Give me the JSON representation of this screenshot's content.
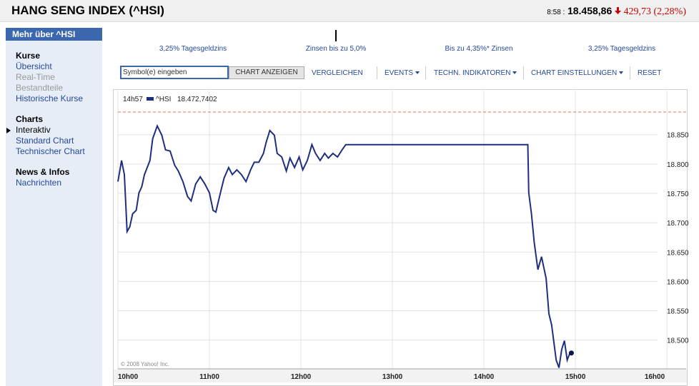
{
  "header": {
    "title": "HANG SENG INDEX (^HSI)",
    "time": "8:58 :",
    "price": "18.458,86",
    "change": "429,73 (2,28%)"
  },
  "sidebar": {
    "heading": "Mehr über ^HSI",
    "sections": [
      {
        "title": "Kurse",
        "links": [
          "Übersicht",
          "Real-Time",
          "Bestandteile",
          "Historische Kurse"
        ]
      },
      {
        "title": "Charts",
        "links": [
          "Interaktiv",
          "Standard Chart",
          "Technischer Chart"
        ]
      },
      {
        "title": "News & Infos",
        "links": [
          "Nachrichten"
        ]
      }
    ]
  },
  "ads": [
    "3,25% Tagesgeldzins",
    "Zinsen bis zu 5,0%",
    "Bis zu 4,35%* Zinsen",
    "3,25% Tagesgeldzins"
  ],
  "toolbar": {
    "input": "Symbol(e) eingeben",
    "button": "CHART ANZEIGEN",
    "items": [
      "VERGLEICHEN",
      "EVENTS",
      "TECHN. INDIKATOREN",
      "CHART EINSTELLUNGEN",
      "RESET"
    ]
  },
  "chart_data": {
    "type": "line",
    "legend_time": "14h57",
    "legend_value": "18.472,7402",
    "copyright": "© 2008 Yahoo! Inc.",
    "ref_line": {
      "value": 18888.59,
      "color": "#e07050"
    },
    "xlim": [
      10,
      16.21
    ],
    "xticks": [
      {
        "value": 10,
        "label": "10h00"
      },
      {
        "value": 11,
        "label": "11h00"
      },
      {
        "value": 12,
        "label": "12h00"
      },
      {
        "value": 13,
        "label": "13h00"
      },
      {
        "value": 14,
        "label": "14h00"
      },
      {
        "value": 15,
        "label": "15h00"
      },
      {
        "value": 16,
        "label": "16h00"
      }
    ],
    "ylim": [
      18451,
      18925
    ],
    "yticks": [
      {
        "value": 18500,
        "label": "18.500"
      },
      {
        "value": 18550,
        "label": "18.550"
      },
      {
        "value": 18600,
        "label": "18.600"
      },
      {
        "value": 18650,
        "label": "18.650"
      },
      {
        "value": 18700,
        "label": "18.700"
      },
      {
        "value": 18750,
        "label": "18.750"
      },
      {
        "value": 18800,
        "label": "18.800"
      },
      {
        "value": 18850,
        "label": "18.850"
      }
    ],
    "grid": true,
    "x": [
      10.0,
      10.04,
      10.07,
      10.1,
      10.13,
      10.16,
      10.2,
      10.23,
      10.26,
      10.29,
      10.32,
      10.35,
      10.38,
      10.43,
      10.48,
      10.52,
      10.57,
      10.62,
      10.66,
      10.71,
      10.76,
      10.8,
      10.85,
      10.9,
      10.95,
      11.0,
      11.04,
      11.07,
      11.12,
      11.16,
      11.21,
      11.25,
      11.3,
      11.35,
      11.4,
      11.45,
      11.49,
      11.54,
      11.59,
      11.62,
      11.66,
      11.71,
      11.74,
      11.79,
      11.84,
      11.88,
      11.93,
      11.98,
      12.02,
      12.07,
      12.12,
      12.16,
      12.21,
      12.26,
      12.3,
      12.35,
      12.4,
      12.45,
      12.49,
      12.55,
      14.48,
      14.49,
      14.52,
      14.55,
      14.59,
      14.63,
      14.68,
      14.71,
      14.74,
      14.79,
      14.82,
      14.85,
      14.88,
      14.91,
      14.94
    ],
    "series": [
      {
        "name": "^HSI",
        "color": "#1f2f7f",
        "values": [
          18770,
          18806,
          18782,
          18685,
          18693,
          18715,
          18721,
          18751,
          18761,
          18782,
          18794,
          18806,
          18843,
          18865,
          18849,
          18824,
          18822,
          18798,
          18788,
          18770,
          18745,
          18737,
          18766,
          18778,
          18766,
          18751,
          18721,
          18718,
          18751,
          18776,
          18794,
          18782,
          18790,
          18782,
          18770,
          18790,
          18803,
          18803,
          18818,
          18837,
          18857,
          18849,
          18818,
          18812,
          18788,
          18810,
          18794,
          18812,
          18790,
          18806,
          18833,
          18818,
          18806,
          18818,
          18810,
          18818,
          18812,
          18824,
          18833,
          18833,
          18833,
          18751,
          18715,
          18666,
          18620,
          18642,
          18605,
          18545,
          18526,
          18466,
          18453,
          18484,
          18499,
          18466,
          18478
        ]
      }
    ]
  }
}
